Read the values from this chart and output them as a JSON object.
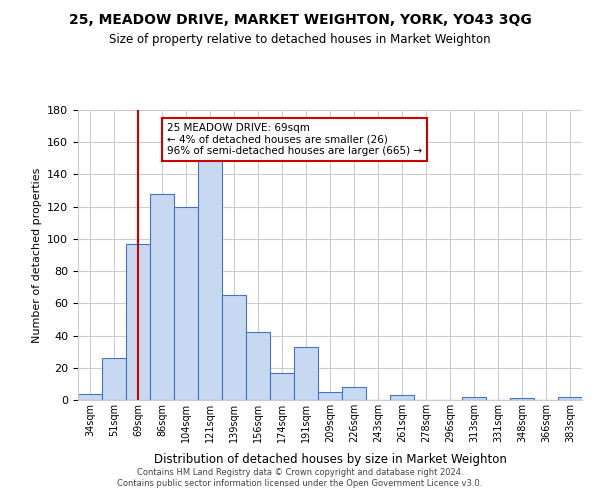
{
  "title": "25, MEADOW DRIVE, MARKET WEIGHTON, YORK, YO43 3QG",
  "subtitle": "Size of property relative to detached houses in Market Weighton",
  "xlabel": "Distribution of detached houses by size in Market Weighton",
  "ylabel": "Number of detached properties",
  "bar_labels": [
    "34sqm",
    "51sqm",
    "69sqm",
    "86sqm",
    "104sqm",
    "121sqm",
    "139sqm",
    "156sqm",
    "174sqm",
    "191sqm",
    "209sqm",
    "226sqm",
    "243sqm",
    "261sqm",
    "278sqm",
    "296sqm",
    "313sqm",
    "331sqm",
    "348sqm",
    "366sqm",
    "383sqm"
  ],
  "bar_heights": [
    4,
    26,
    97,
    128,
    120,
    150,
    65,
    42,
    17,
    33,
    5,
    8,
    0,
    3,
    0,
    0,
    2,
    0,
    1,
    0,
    2
  ],
  "bar_color": "#c6d9f0",
  "bar_edge_color": "#4472c4",
  "ylim": [
    0,
    180
  ],
  "yticks": [
    0,
    20,
    40,
    60,
    80,
    100,
    120,
    140,
    160,
    180
  ],
  "vline_x_index": 2,
  "vline_color": "#cc0000",
  "annotation_title": "25 MEADOW DRIVE: 69sqm",
  "annotation_line1": "← 4% of detached houses are smaller (26)",
  "annotation_line2": "96% of semi-detached houses are larger (665) →",
  "annotation_box_color": "#ffffff",
  "annotation_box_edge_color": "#cc0000",
  "footer1": "Contains HM Land Registry data © Crown copyright and database right 2024.",
  "footer2": "Contains public sector information licensed under the Open Government Licence v3.0.",
  "background_color": "#ffffff",
  "grid_color": "#cccccc"
}
